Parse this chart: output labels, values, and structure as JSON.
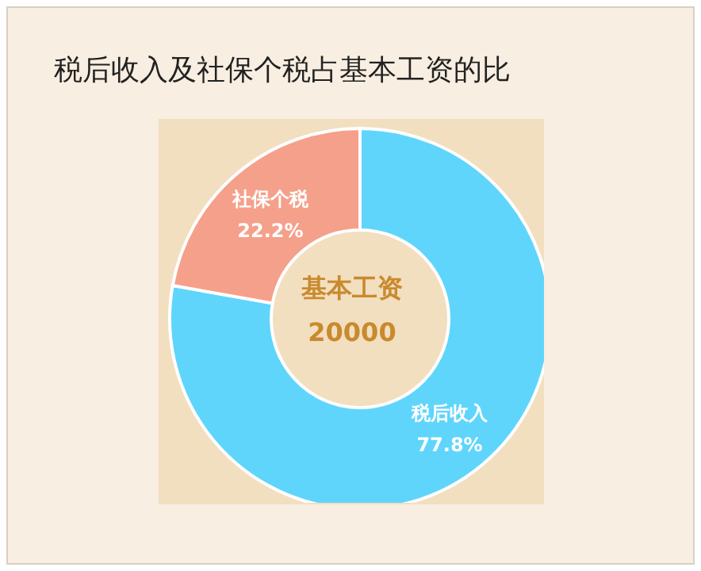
{
  "chart_data": {
    "type": "donut",
    "title": "税后收入及社保个税占基本工资的比",
    "categories": [
      "税后收入",
      "社保个税"
    ],
    "values": [
      77.8,
      22.2
    ],
    "colors": [
      "#5fd5fc",
      "#f5a08a"
    ],
    "value_labels": [
      "77.8%",
      "22.2%"
    ],
    "annotations": [
      "基本工资",
      "20000"
    ]
  }
}
